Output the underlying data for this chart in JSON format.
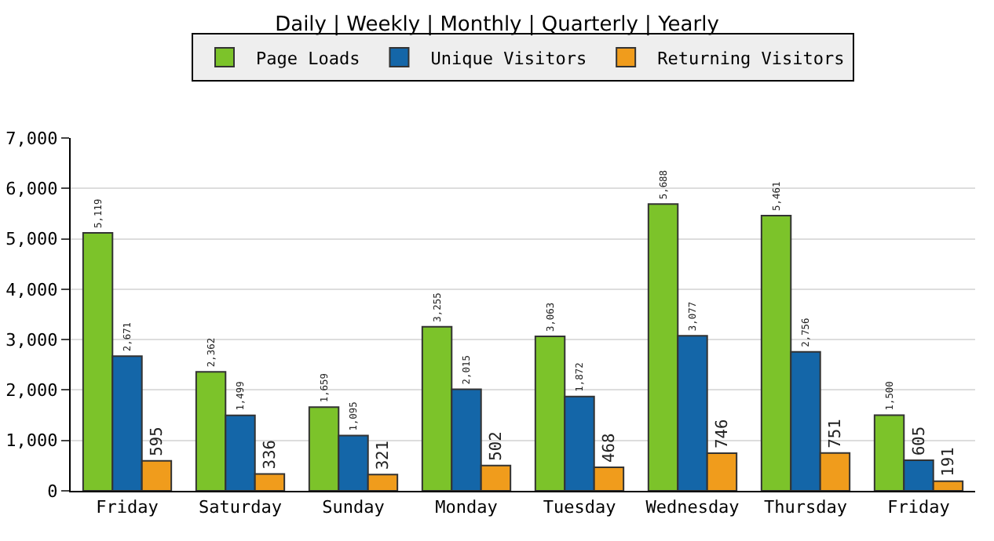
{
  "chart_data": {
    "type": "bar",
    "title": "Daily | Weekly | Monthly | Quarterly | Yearly",
    "categories": [
      "Friday",
      "Saturday",
      "Sunday",
      "Monday",
      "Tuesday",
      "Wednesday",
      "Thursday",
      "Friday"
    ],
    "series": [
      {
        "name": "Page Loads",
        "color": "#7cc32a",
        "values": [
          5119,
          2362,
          1659,
          3255,
          3063,
          5688,
          5461,
          1500
        ],
        "value_labels": [
          "5,119",
          "2,362",
          "1,659",
          "3,255",
          "3,063",
          "5,688",
          "5,461",
          "1,500"
        ]
      },
      {
        "name": "Unique Visitors",
        "color": "#1466a8",
        "values": [
          2671,
          1499,
          1095,
          2015,
          1872,
          3077,
          2756,
          605
        ],
        "value_labels": [
          "2,671",
          "1,499",
          "1,095",
          "2,015",
          "1,872",
          "3,077",
          "2,756",
          "605"
        ]
      },
      {
        "name": "Returning Visitors",
        "color": "#f09c1c",
        "values": [
          595,
          336,
          321,
          502,
          468,
          746,
          751,
          191
        ],
        "value_labels": [
          "595",
          "336",
          "321",
          "502",
          "468",
          "746",
          "751",
          "191"
        ]
      }
    ],
    "ylim": [
      0,
      7000
    ],
    "yticks": [
      {
        "value": 0,
        "label": "0"
      },
      {
        "value": 1000,
        "label": "1,000"
      },
      {
        "value": 2000,
        "label": "2,000"
      },
      {
        "value": 3000,
        "label": "3,000"
      },
      {
        "value": 4000,
        "label": "4,000"
      },
      {
        "value": 5000,
        "label": "5,000"
      },
      {
        "value": 6000,
        "label": "6,000"
      },
      {
        "value": 7000,
        "label": "7,000"
      }
    ],
    "grid": "y",
    "legend": "top"
  }
}
